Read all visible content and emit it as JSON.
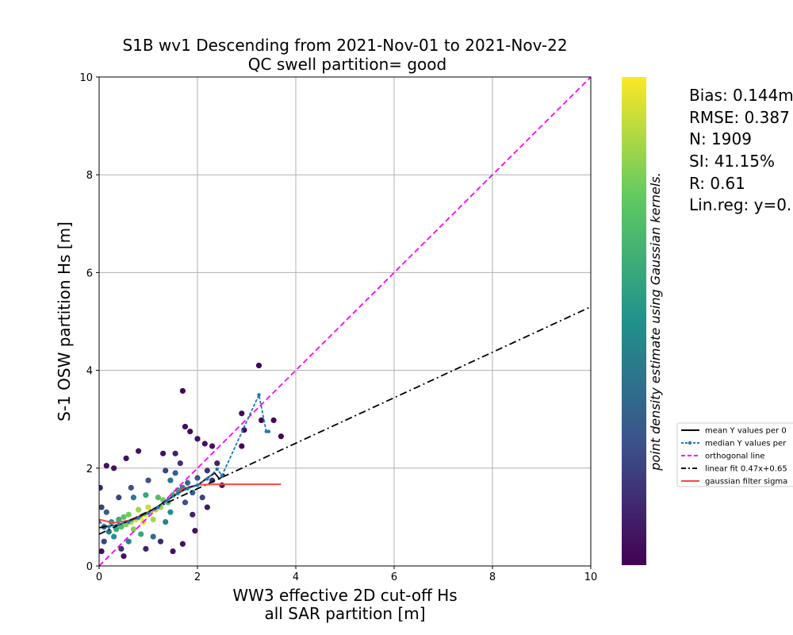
{
  "chart_data": {
    "type": "scatter",
    "title": "S1B wv1 Descending from 2021-Nov-01 to 2021-Nov-22",
    "subtitle": "QC swell partition= good",
    "xlabel": [
      "WW3 effective 2D cut-off Hs",
      "all SAR partition [m]"
    ],
    "ylabel": "S-1 OSW partition Hs [m]",
    "xlim": [
      0,
      10
    ],
    "ylim": [
      0,
      10
    ],
    "x_ticks": [
      0,
      2,
      4,
      6,
      8,
      10
    ],
    "y_ticks": [
      0,
      2,
      4,
      6,
      8,
      10
    ],
    "grid": true,
    "colorbar_label": "point density estimate using Gaussian kernels.",
    "colormap": [
      "#440154",
      "#3b528b",
      "#21918c",
      "#5ec962",
      "#fde725"
    ],
    "stats": [
      "Bias: 0.144m",
      "RMSE: 0.387",
      "N: 1909",
      "SI: 41.15%",
      "R: 0.61",
      "Lin.reg: y=0."
    ],
    "legend_placement": "center-right",
    "legend": [
      {
        "label": "mean Y values per 0",
        "color": "#000000",
        "style": "solid"
      },
      {
        "label": "median Y values per",
        "color": "#1f77b4",
        "style": "dashed-marker"
      },
      {
        "label": "orthogonal line",
        "color": "#ff00ff",
        "style": "dashed"
      },
      {
        "label": "linear fit 0.47x+0.65",
        "color": "#000000",
        "style": "dashdot"
      },
      {
        "label": "gaussian filter sigma",
        "color": "#ff4444",
        "style": "solid"
      }
    ],
    "series": [
      {
        "name": "orthogonal line",
        "color": "#ff00ff",
        "points": [
          [
            0,
            0
          ],
          [
            10,
            10
          ]
        ]
      },
      {
        "name": "linear fit 0.47x+0.65",
        "color": "#000000",
        "points": [
          [
            0,
            0.65
          ],
          [
            10,
            5.3
          ]
        ]
      },
      {
        "name": "gaussian filter sigma",
        "color": "#ff4444",
        "points": [
          [
            0,
            0.95
          ],
          [
            0.3,
            0.88
          ],
          [
            0.6,
            0.93
          ],
          [
            0.9,
            1.05
          ],
          [
            1.2,
            1.22
          ],
          [
            1.5,
            1.42
          ],
          [
            1.7,
            1.58
          ],
          [
            2.0,
            1.66
          ],
          [
            2.4,
            1.67
          ],
          [
            3.7,
            1.67
          ]
        ]
      },
      {
        "name": "mean Y values per 0",
        "color": "#000000",
        "points": [
          [
            0,
            0.78
          ],
          [
            0.2,
            0.82
          ],
          [
            0.4,
            0.84
          ],
          [
            0.6,
            0.92
          ],
          [
            0.8,
            1.0
          ],
          [
            1.0,
            1.1
          ],
          [
            1.2,
            1.22
          ],
          [
            1.4,
            1.36
          ],
          [
            1.6,
            1.48
          ],
          [
            1.8,
            1.6
          ],
          [
            2.0,
            1.65
          ],
          [
            2.2,
            1.8
          ],
          [
            2.35,
            1.9
          ],
          [
            2.45,
            1.78
          ],
          [
            2.55,
            1.88
          ]
        ]
      },
      {
        "name": "median Y values per",
        "color": "#1f77b4",
        "points": [
          [
            0,
            0.9
          ],
          [
            0.2,
            0.8
          ],
          [
            0.4,
            0.85
          ],
          [
            0.6,
            0.9
          ],
          [
            0.8,
            0.98
          ],
          [
            1.0,
            1.08
          ],
          [
            1.2,
            1.2
          ],
          [
            1.4,
            1.35
          ],
          [
            1.6,
            1.48
          ],
          [
            1.8,
            1.58
          ],
          [
            2.0,
            1.65
          ],
          [
            2.2,
            1.78
          ],
          [
            2.4,
            1.98
          ],
          [
            2.5,
            1.85
          ],
          [
            3.25,
            3.5
          ],
          [
            3.4,
            2.75
          ],
          [
            3.45,
            2.75
          ]
        ]
      }
    ],
    "scatter_points": [
      [
        0.95,
        1.05,
        1.0
      ],
      [
        0.85,
        1.0,
        0.98
      ],
      [
        1.05,
        1.1,
        0.95
      ],
      [
        0.75,
        0.95,
        0.93
      ],
      [
        1.15,
        1.15,
        0.9
      ],
      [
        0.65,
        0.9,
        0.88
      ],
      [
        1.25,
        1.2,
        0.85
      ],
      [
        0.55,
        0.85,
        0.8
      ],
      [
        0.9,
        0.9,
        0.95
      ],
      [
        1.0,
        1.2,
        0.92
      ],
      [
        0.8,
        1.15,
        0.85
      ],
      [
        1.1,
        0.95,
        0.87
      ],
      [
        0.7,
        0.75,
        0.8
      ],
      [
        1.3,
        1.35,
        0.78
      ],
      [
        0.6,
        1.05,
        0.78
      ],
      [
        1.4,
        1.3,
        0.72
      ],
      [
        0.45,
        0.8,
        0.7
      ],
      [
        0.5,
        1.0,
        0.72
      ],
      [
        1.2,
        1.4,
        0.7
      ],
      [
        0.35,
        0.75,
        0.6
      ],
      [
        1.5,
        1.45,
        0.62
      ],
      [
        0.4,
        0.95,
        0.62
      ],
      [
        0.3,
        0.6,
        0.5
      ],
      [
        1.6,
        1.55,
        0.55
      ],
      [
        0.25,
        0.9,
        0.5
      ],
      [
        1.7,
        1.6,
        0.45
      ],
      [
        0.2,
        0.7,
        0.4
      ],
      [
        1.45,
        1.1,
        0.5
      ],
      [
        0.95,
        1.45,
        0.6
      ],
      [
        0.85,
        0.65,
        0.6
      ],
      [
        1.35,
        0.9,
        0.45
      ],
      [
        0.6,
        0.5,
        0.45
      ],
      [
        1.8,
        1.7,
        0.35
      ],
      [
        0.15,
        1.1,
        0.3
      ],
      [
        0.1,
        0.8,
        0.3
      ],
      [
        1.9,
        1.5,
        0.3
      ],
      [
        1.55,
        1.9,
        0.3
      ],
      [
        0.05,
        1.2,
        0.2
      ],
      [
        0.1,
        0.5,
        0.2
      ],
      [
        2.0,
        1.8,
        0.25
      ],
      [
        2.1,
        1.4,
        0.2
      ],
      [
        1.75,
        1.3,
        0.25
      ],
      [
        0.7,
        1.4,
        0.4
      ],
      [
        1.1,
        0.6,
        0.35
      ],
      [
        2.2,
        1.95,
        0.15
      ],
      [
        2.3,
        1.75,
        0.15
      ],
      [
        1.65,
        2.1,
        0.15
      ],
      [
        0.45,
        0.35,
        0.15
      ],
      [
        0.02,
        1.6,
        0.1
      ],
      [
        0.15,
        2.05,
        0.05
      ],
      [
        0.3,
        2.0,
        0.05
      ],
      [
        0.55,
        2.2,
        0.05
      ],
      [
        0.8,
        2.35,
        0.05
      ],
      [
        1.3,
        2.3,
        0.05
      ],
      [
        1.7,
        3.58,
        0.02
      ],
      [
        1.75,
        2.85,
        0.03
      ],
      [
        1.85,
        2.75,
        0.03
      ],
      [
        2.0,
        2.6,
        0.05
      ],
      [
        2.15,
        2.5,
        0.05
      ],
      [
        2.3,
        2.45,
        0.05
      ],
      [
        2.9,
        3.12,
        0.02
      ],
      [
        3.25,
        4.1,
        0.02
      ],
      [
        3.3,
        2.98,
        0.02
      ],
      [
        3.55,
        2.98,
        0.02
      ],
      [
        3.7,
        2.65,
        0.02
      ],
      [
        2.95,
        2.78,
        0.02
      ],
      [
        2.9,
        2.45,
        0.02
      ],
      [
        1.95,
        0.72,
        0.05
      ],
      [
        1.5,
        0.3,
        0.05
      ],
      [
        1.7,
        0.45,
        0.05
      ],
      [
        0.5,
        0.2,
        0.05
      ],
      [
        0.05,
        0.3,
        0.05
      ],
      [
        2.4,
        2.1,
        0.1
      ],
      [
        2.5,
        1.65,
        0.08
      ],
      [
        2.2,
        1.2,
        0.08
      ],
      [
        1.9,
        1.05,
        0.1
      ],
      [
        0.95,
        0.35,
        0.1
      ],
      [
        1.25,
        0.5,
        0.12
      ],
      [
        0.4,
        1.4,
        0.2
      ],
      [
        0.65,
        1.6,
        0.25
      ],
      [
        1.45,
        1.75,
        0.4
      ],
      [
        1.55,
        2.3,
        0.1
      ],
      [
        1.35,
        1.95,
        0.2
      ],
      [
        1.0,
        1.75,
        0.25
      ]
    ]
  }
}
